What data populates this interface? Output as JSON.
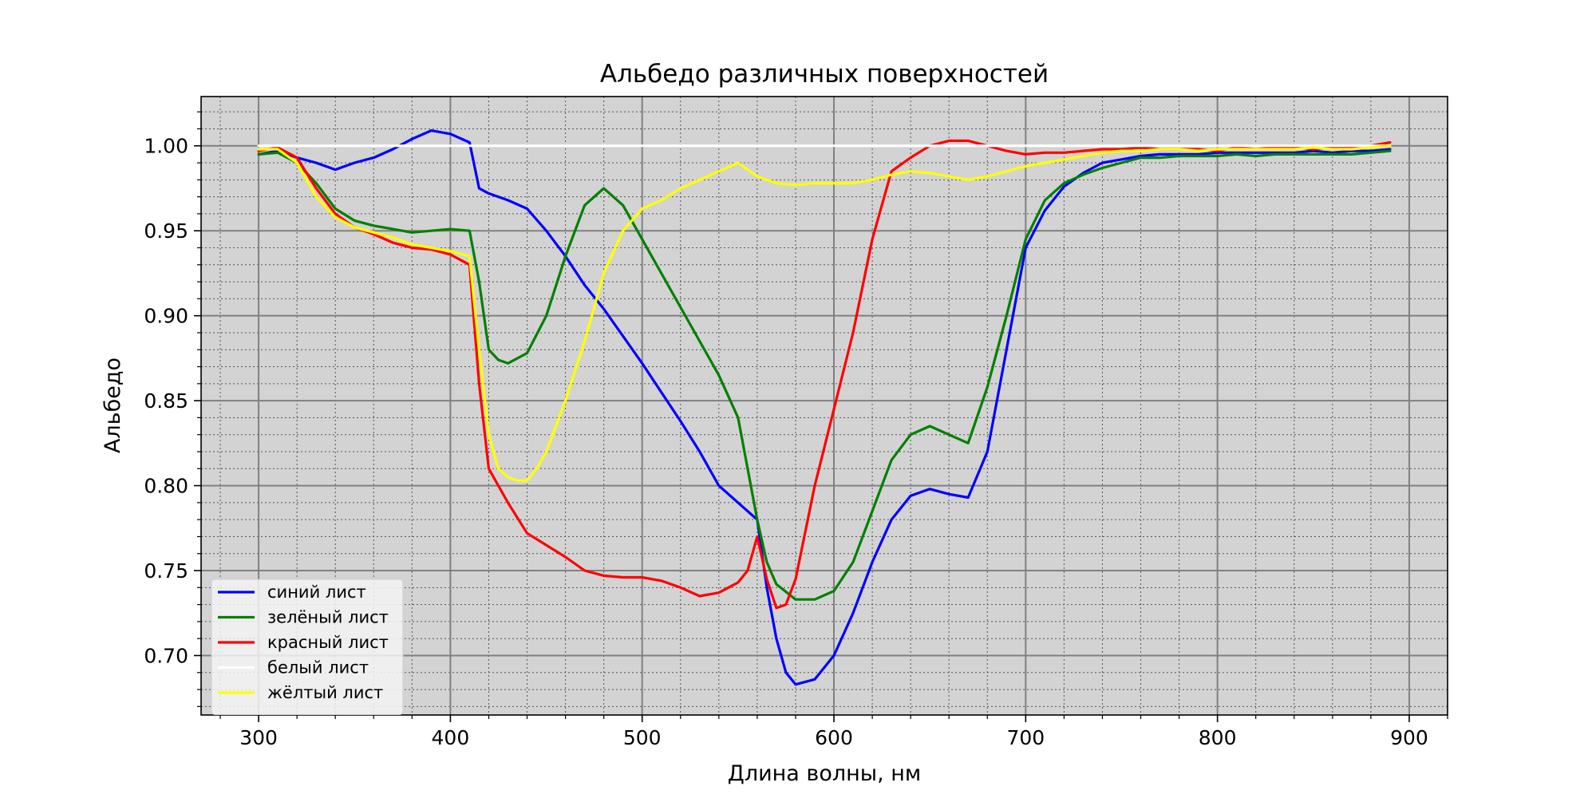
{
  "chart_data": {
    "type": "line",
    "title": "Альбедо различных поверхностей",
    "xlabel": "Длина волны, нм",
    "ylabel": "Альбедо",
    "xlim": [
      270,
      920
    ],
    "ylim": [
      0.665,
      1.029
    ],
    "xticks": [
      300,
      400,
      500,
      600,
      700,
      800,
      900
    ],
    "xtick_labels": [
      "300",
      "400",
      "500",
      "600",
      "700",
      "800",
      "900"
    ],
    "yticks": [
      0.7,
      0.75,
      0.8,
      0.85,
      0.9,
      0.95,
      1.0
    ],
    "ytick_labels": [
      "0.70",
      "0.75",
      "0.80",
      "0.85",
      "0.90",
      "0.95",
      "1.00"
    ],
    "grid": true,
    "minor_grid": true,
    "legend_position": "lower-left",
    "background_color": "#d3d3d3",
    "series": [
      {
        "name": "синий лист",
        "color": "#0000ff",
        "x": [
          300,
          310,
          320,
          330,
          340,
          350,
          360,
          370,
          380,
          390,
          400,
          410,
          415,
          420,
          430,
          440,
          450,
          460,
          470,
          480,
          490,
          500,
          510,
          520,
          530,
          540,
          550,
          560,
          565,
          570,
          575,
          580,
          590,
          600,
          610,
          620,
          630,
          640,
          650,
          660,
          670,
          680,
          690,
          700,
          710,
          720,
          730,
          740,
          750,
          760,
          770,
          780,
          790,
          800,
          810,
          820,
          830,
          840,
          850,
          860,
          870,
          880,
          890
        ],
        "y": [
          0.995,
          0.997,
          0.993,
          0.99,
          0.986,
          0.99,
          0.993,
          0.998,
          1.004,
          1.009,
          1.007,
          1.002,
          0.975,
          0.972,
          0.968,
          0.963,
          0.95,
          0.935,
          0.918,
          0.904,
          0.888,
          0.872,
          0.855,
          0.838,
          0.82,
          0.8,
          0.79,
          0.78,
          0.74,
          0.71,
          0.69,
          0.683,
          0.686,
          0.7,
          0.725,
          0.755,
          0.78,
          0.794,
          0.798,
          0.795,
          0.793,
          0.82,
          0.88,
          0.94,
          0.962,
          0.976,
          0.984,
          0.99,
          0.992,
          0.994,
          0.995,
          0.995,
          0.995,
          0.996,
          0.996,
          0.996,
          0.996,
          0.996,
          0.997,
          0.996,
          0.997,
          0.997,
          0.998
        ]
      },
      {
        "name": "зелёный лист",
        "color": "#008000",
        "x": [
          300,
          310,
          320,
          330,
          340,
          350,
          360,
          370,
          380,
          390,
          400,
          410,
          415,
          420,
          425,
          430,
          440,
          450,
          460,
          470,
          480,
          490,
          500,
          510,
          520,
          530,
          540,
          550,
          555,
          560,
          565,
          570,
          580,
          590,
          600,
          610,
          620,
          630,
          640,
          650,
          660,
          670,
          680,
          690,
          700,
          710,
          720,
          730,
          740,
          750,
          760,
          770,
          780,
          790,
          800,
          810,
          820,
          830,
          840,
          850,
          860,
          870,
          880,
          890
        ],
        "y": [
          0.995,
          0.996,
          0.99,
          0.978,
          0.963,
          0.956,
          0.953,
          0.951,
          0.949,
          0.95,
          0.951,
          0.95,
          0.92,
          0.88,
          0.874,
          0.872,
          0.878,
          0.9,
          0.935,
          0.965,
          0.975,
          0.965,
          0.945,
          0.925,
          0.905,
          0.885,
          0.865,
          0.84,
          0.81,
          0.78,
          0.755,
          0.742,
          0.733,
          0.733,
          0.738,
          0.755,
          0.785,
          0.815,
          0.83,
          0.835,
          0.83,
          0.825,
          0.858,
          0.9,
          0.945,
          0.968,
          0.978,
          0.983,
          0.987,
          0.99,
          0.993,
          0.993,
          0.994,
          0.994,
          0.994,
          0.995,
          0.994,
          0.995,
          0.995,
          0.995,
          0.995,
          0.995,
          0.996,
          0.997
        ]
      },
      {
        "name": "красный лист",
        "color": "#ff0000",
        "x": [
          300,
          310,
          320,
          330,
          340,
          350,
          360,
          370,
          380,
          390,
          400,
          410,
          415,
          420,
          430,
          440,
          450,
          460,
          470,
          480,
          490,
          500,
          510,
          520,
          530,
          540,
          550,
          555,
          560,
          565,
          570,
          575,
          580,
          590,
          600,
          610,
          620,
          630,
          640,
          650,
          660,
          670,
          680,
          690,
          700,
          710,
          720,
          730,
          740,
          750,
          760,
          770,
          780,
          790,
          800,
          810,
          820,
          830,
          840,
          850,
          860,
          870,
          880,
          890
        ],
        "y": [
          0.997,
          0.999,
          0.993,
          0.975,
          0.96,
          0.952,
          0.948,
          0.943,
          0.94,
          0.939,
          0.936,
          0.93,
          0.86,
          0.81,
          0.79,
          0.772,
          0.765,
          0.758,
          0.75,
          0.747,
          0.746,
          0.746,
          0.744,
          0.74,
          0.735,
          0.737,
          0.743,
          0.75,
          0.77,
          0.745,
          0.728,
          0.73,
          0.745,
          0.8,
          0.845,
          0.89,
          0.945,
          0.985,
          0.993,
          1.0,
          1.003,
          1.003,
          1.0,
          0.997,
          0.995,
          0.996,
          0.996,
          0.997,
          0.998,
          0.998,
          0.999,
          0.998,
          0.998,
          0.998,
          0.997,
          0.999,
          0.998,
          0.999,
          0.999,
          0.998,
          0.999,
          0.999,
          1.0,
          1.002
        ]
      },
      {
        "name": "белый лист",
        "color": "#ffffff",
        "x": [
          300,
          890
        ],
        "y": [
          1.0,
          1.0
        ]
      },
      {
        "name": "жёлтый лист",
        "color": "#ffff00",
        "x": [
          300,
          310,
          320,
          330,
          340,
          350,
          360,
          370,
          380,
          390,
          400,
          410,
          415,
          420,
          425,
          430,
          435,
          440,
          445,
          450,
          460,
          470,
          480,
          490,
          500,
          510,
          520,
          530,
          540,
          550,
          560,
          570,
          580,
          590,
          600,
          610,
          620,
          630,
          640,
          650,
          660,
          670,
          680,
          690,
          700,
          710,
          720,
          730,
          740,
          750,
          760,
          770,
          780,
          790,
          800,
          810,
          820,
          830,
          840,
          850,
          860,
          870,
          880,
          890
        ],
        "y": [
          0.998,
          0.998,
          0.99,
          0.97,
          0.958,
          0.952,
          0.949,
          0.946,
          0.942,
          0.94,
          0.938,
          0.935,
          0.88,
          0.83,
          0.81,
          0.805,
          0.803,
          0.803,
          0.81,
          0.82,
          0.85,
          0.885,
          0.925,
          0.95,
          0.963,
          0.968,
          0.975,
          0.98,
          0.985,
          0.99,
          0.982,
          0.978,
          0.977,
          0.978,
          0.978,
          0.978,
          0.98,
          0.983,
          0.985,
          0.984,
          0.982,
          0.98,
          0.982,
          0.985,
          0.988,
          0.99,
          0.992,
          0.994,
          0.996,
          0.997,
          0.997,
          0.998,
          0.998,
          0.997,
          0.998,
          0.998,
          0.998,
          0.998,
          0.998,
          0.999,
          0.998,
          0.998,
          0.999,
          1.0
        ]
      }
    ]
  }
}
